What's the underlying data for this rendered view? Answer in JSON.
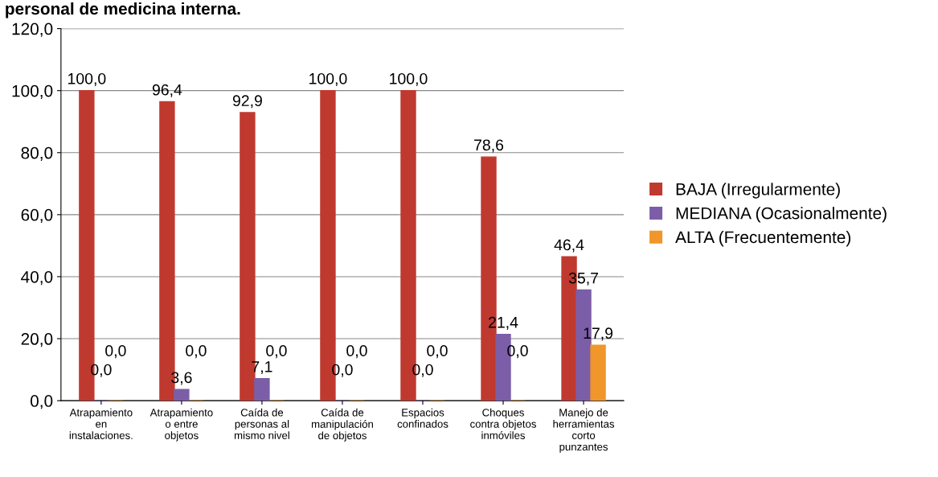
{
  "chart_data": {
    "type": "bar",
    "title": "personal de medicina interna.",
    "categories": [
      "Atrapamiento\nen\ninstalaciones.",
      "Atrapamiento\no entre\nobjetos",
      "Caída de\npersonas al\nmismo nivel",
      "Caída de\nmanipulación\nde objetos",
      "Espacios\nconfinados",
      "Choques\ncontra objetos\ninmóviles",
      "Manejo de\nherramientas\ncorto\npunzantes"
    ],
    "series": [
      {
        "name": "BAJA (Irregularmente)",
        "color": "#c0392f",
        "values": [
          100.0,
          96.4,
          92.9,
          100.0,
          100.0,
          78.6,
          46.4
        ],
        "value_labels": [
          "100,0",
          "96,4",
          "92,9",
          "100,0",
          "100,0",
          "78,6",
          "46,4"
        ]
      },
      {
        "name": "MEDIANA (Ocasionalmente)",
        "color": "#7b5ea7",
        "values": [
          0.0,
          3.6,
          7.1,
          0.0,
          0.0,
          21.4,
          35.7
        ],
        "value_labels": [
          "0,0",
          "3,6",
          "7,1",
          "0,0",
          "0,0",
          "21,4",
          "35,7"
        ]
      },
      {
        "name": "ALTA (Frecuentemente)",
        "color": "#f0962a",
        "values": [
          0.0,
          0.0,
          0.0,
          0.0,
          0.0,
          0.0,
          17.9
        ],
        "value_labels": [
          "0,0",
          "0,0",
          "0,0",
          "0,0",
          "0,0",
          "0,0",
          "17,9"
        ]
      }
    ],
    "ylim": [
      0,
      120
    ],
    "yticks": [
      {
        "value": 0,
        "label": "0,0"
      },
      {
        "value": 20,
        "label": "20,0"
      },
      {
        "value": 40,
        "label": "40,0"
      },
      {
        "value": 60,
        "label": "60,0"
      },
      {
        "value": 80,
        "label": "80,0"
      },
      {
        "value": 100,
        "label": "100,0"
      },
      {
        "value": 120,
        "label": "120,0"
      }
    ],
    "grid": "y",
    "legend": "right"
  }
}
